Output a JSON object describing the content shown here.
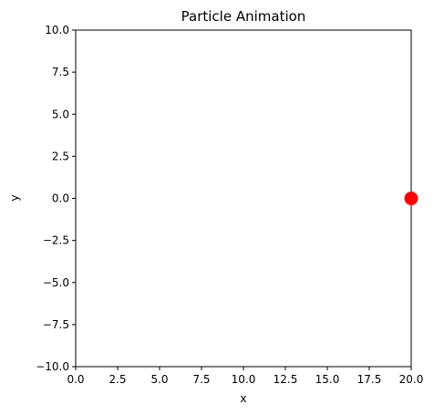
{
  "chart_data": {
    "type": "scatter",
    "title": "Particle Animation",
    "xlabel": "x",
    "ylabel": "y",
    "xlim": [
      0,
      20
    ],
    "ylim": [
      -10,
      10
    ],
    "grid": false,
    "xticks": [
      0,
      2.5,
      5,
      7.5,
      10,
      12.5,
      15,
      17.5,
      20
    ],
    "xtick_labels": [
      "0.0",
      "2.5",
      "5.0",
      "7.5",
      "10.0",
      "12.5",
      "15.0",
      "17.5",
      "20.0"
    ],
    "yticks": [
      10,
      7.5,
      5,
      2.5,
      0,
      -2.5,
      -5,
      -7.5,
      -10
    ],
    "ytick_labels": [
      "10.0",
      "7.5",
      "5.0",
      "2.5",
      "0.0",
      "−2.5",
      "−5.0",
      "−7.5",
      "−10.0"
    ],
    "points": [
      {
        "x": 20,
        "y": 0,
        "color": "#ff0000"
      }
    ]
  }
}
